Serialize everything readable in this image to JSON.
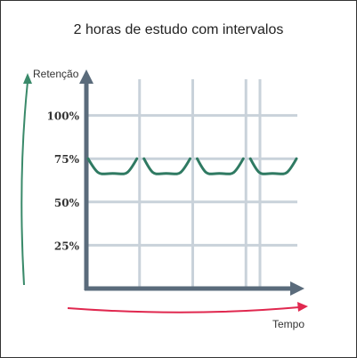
{
  "chart_data": {
    "type": "line",
    "title": "2 horas de estudo com intervalos",
    "xlabel": "Tempo",
    "ylabel": "Retenção",
    "y_ticks": [
      {
        "value": 100,
        "label": "100%"
      },
      {
        "value": 75,
        "label": "75%"
      },
      {
        "value": 50,
        "label": "50%"
      },
      {
        "value": 25,
        "label": "25%"
      }
    ],
    "ylim": [
      0,
      125
    ],
    "xlim": [
      0,
      4
    ],
    "grid": true,
    "series": [
      {
        "values": [
          {
            "x": 0.0,
            "y": 75
          },
          {
            "x": 0.5,
            "y": 68
          },
          {
            "x": 1.0,
            "y": 75
          },
          {
            "x": 1.0,
            "y": 75
          },
          {
            "x": 1.5,
            "y": 68
          },
          {
            "x": 2.0,
            "y": 75
          },
          {
            "x": 2.0,
            "y": 75
          },
          {
            "x": 2.5,
            "y": 68
          },
          {
            "x": 3.0,
            "y": 75
          },
          {
            "x": 3.0,
            "y": 75
          },
          {
            "x": 3.5,
            "y": 68
          },
          {
            "x": 4.0,
            "y": 75
          }
        ]
      }
    ],
    "colors": {
      "axis": "#5a6b7b",
      "grid": "#c9d2da",
      "series": "#2f7a62",
      "retention_arrow": "#3a8a6a",
      "time_arrow": "#e0284f"
    }
  }
}
